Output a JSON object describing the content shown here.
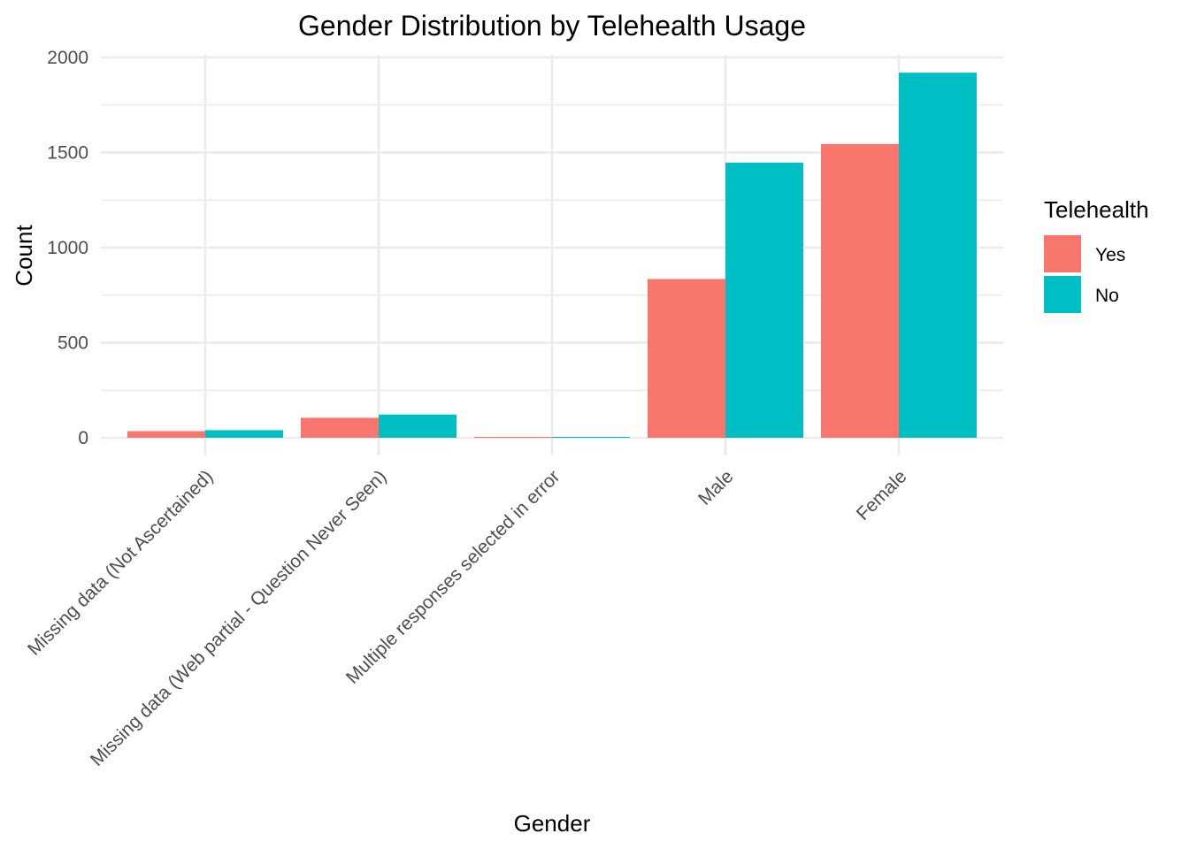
{
  "chart_data": {
    "type": "bar",
    "title": "Gender Distribution by Telehealth Usage",
    "xlabel": "Gender",
    "ylabel": "Count",
    "ylim": [
      0,
      2000
    ],
    "y_ticks": [
      0,
      500,
      1000,
      1500,
      2000
    ],
    "grid": true,
    "categories": [
      "Missing data (Not Ascertained)",
      "Missing data (Web partial - Question Never Seen)",
      "Multiple responses selected in error",
      "Male",
      "Female"
    ],
    "series": [
      {
        "name": "Yes",
        "color": "#F8766D",
        "values": [
          35,
          105,
          3,
          835,
          1545
        ]
      },
      {
        "name": "No",
        "color": "#00BFC4",
        "values": [
          40,
          122,
          3,
          1447,
          1920
        ]
      }
    ],
    "legend": {
      "title": "Telehealth",
      "position": "right"
    }
  }
}
